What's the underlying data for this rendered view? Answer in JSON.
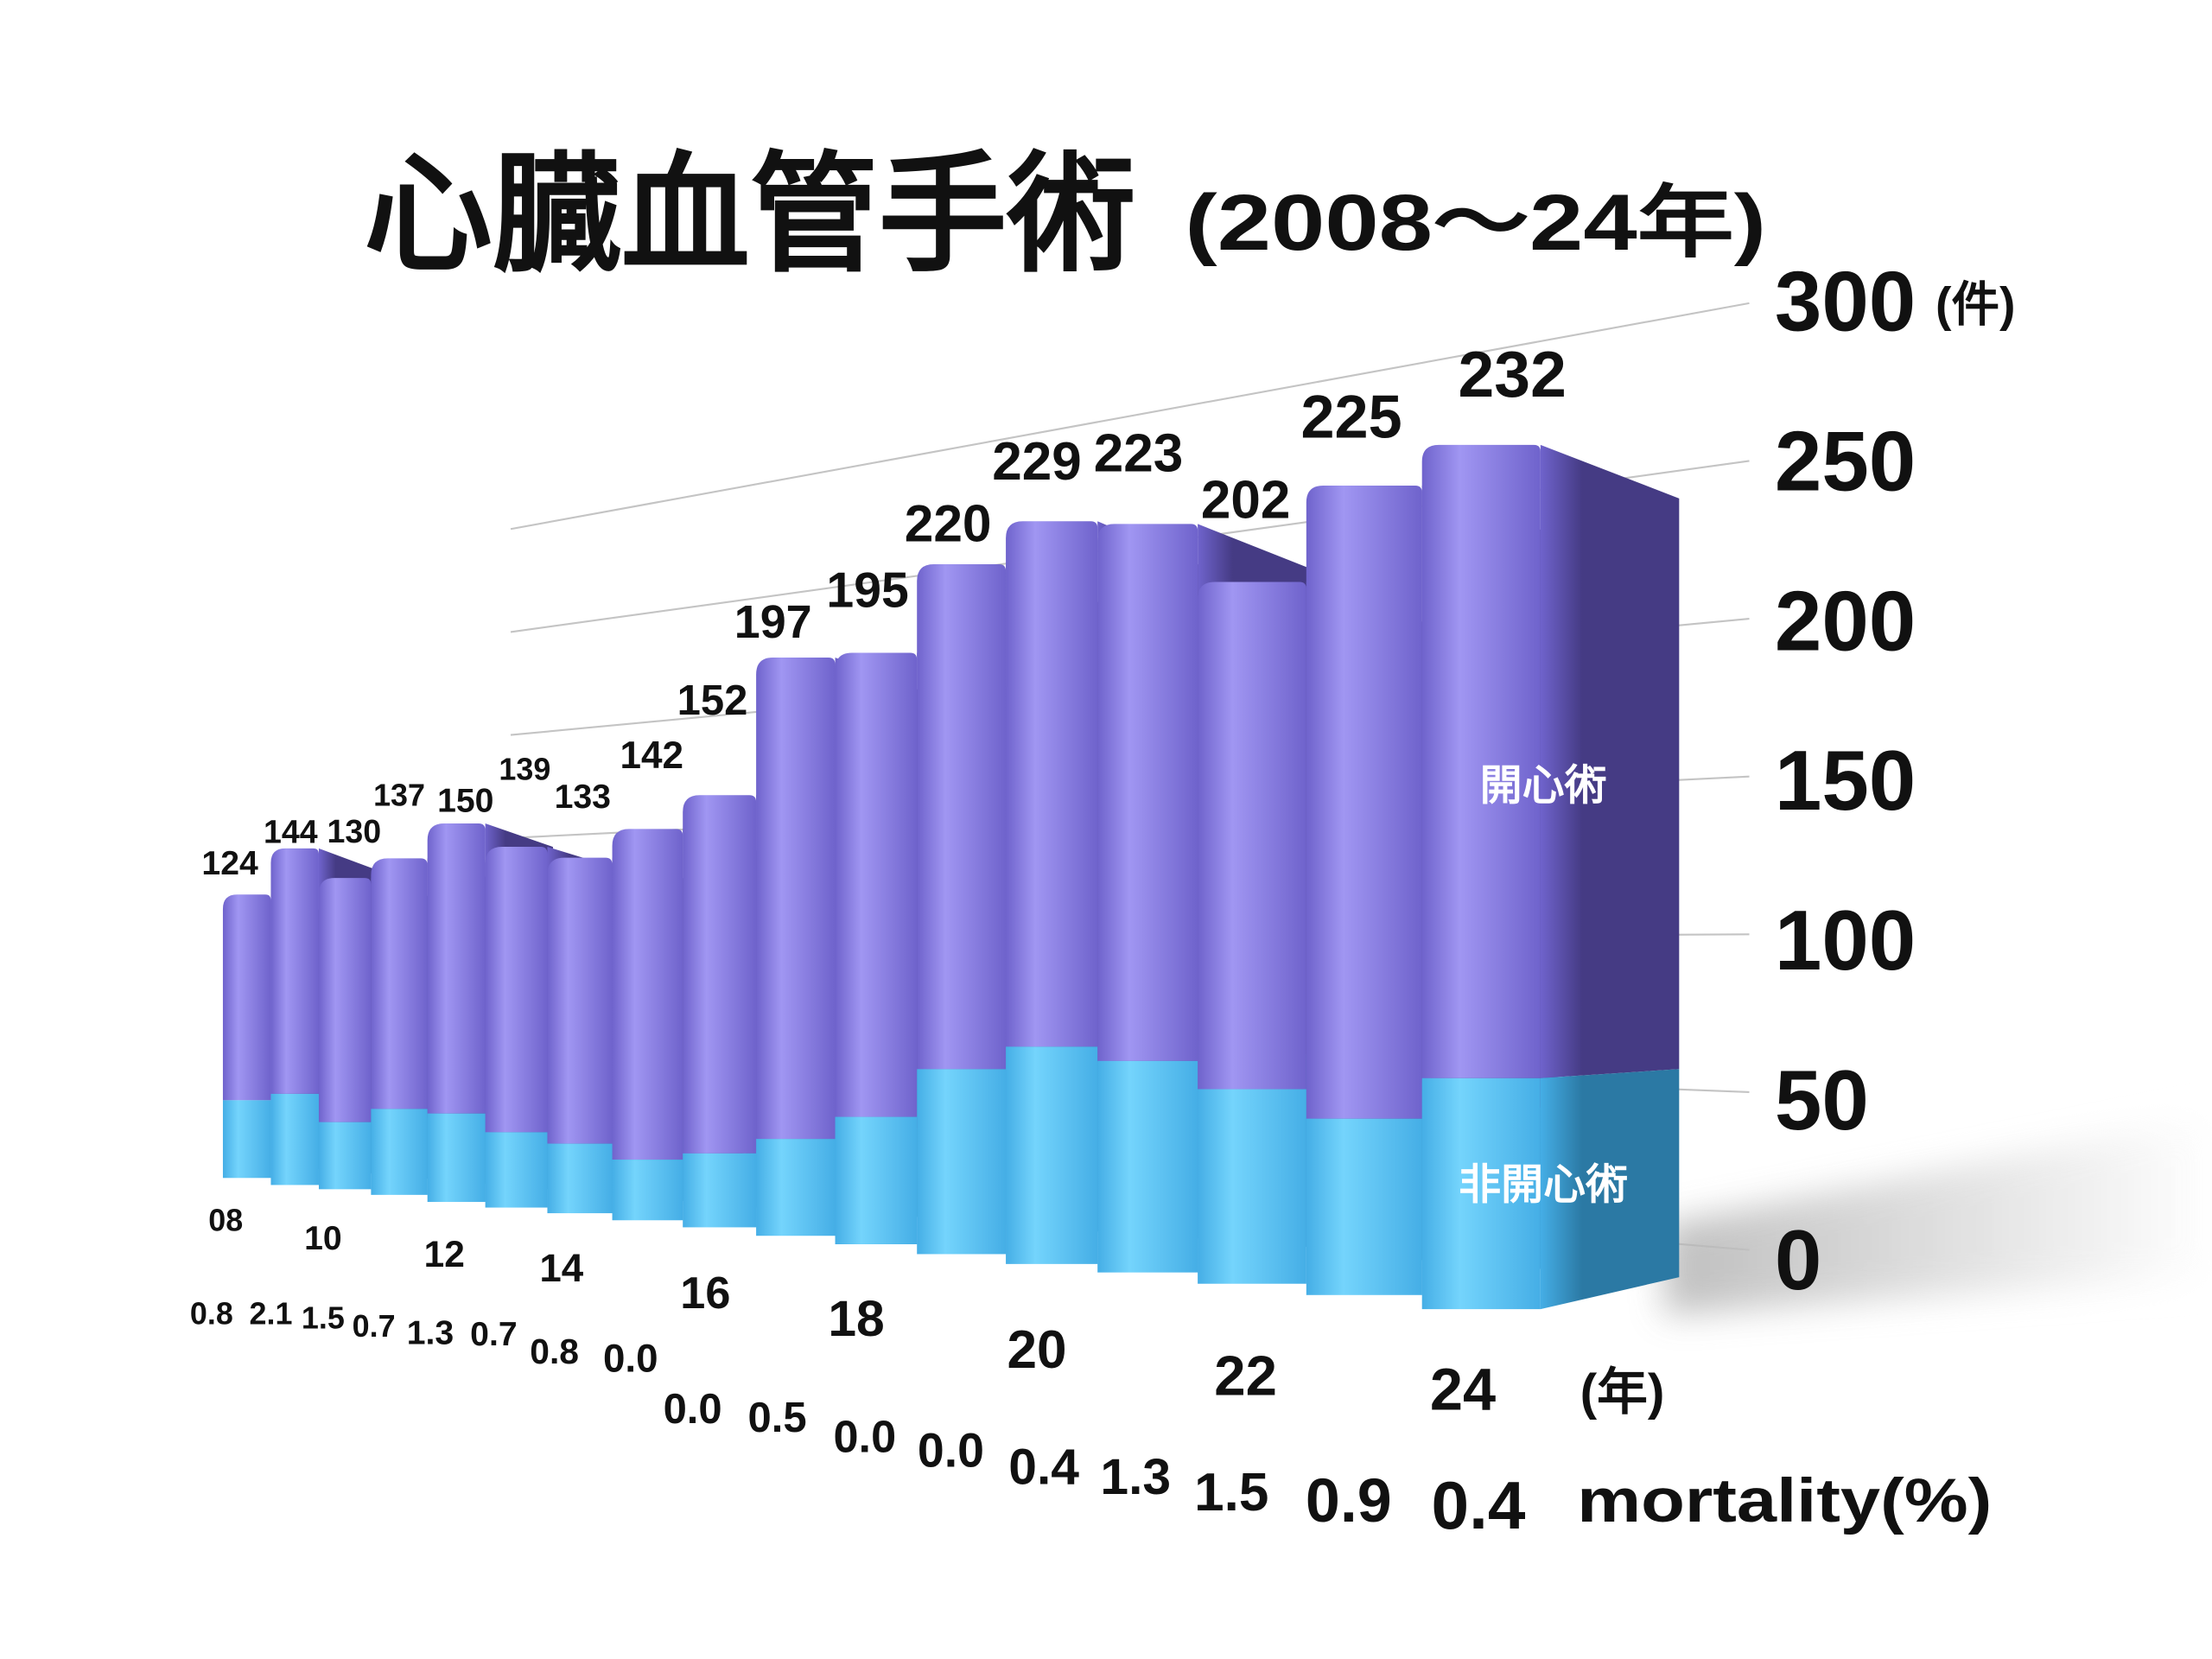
{
  "chart_data": {
    "type": "bar",
    "stacked": true,
    "title": "心臓血管手術",
    "subtitle": "(2008～24年)",
    "x": [
      2008,
      2009,
      2010,
      2011,
      2012,
      2013,
      2014,
      2015,
      2016,
      2017,
      2018,
      2019,
      2020,
      2021,
      2022,
      2023,
      2024
    ],
    "x_tick_labels": [
      "08",
      "10",
      "12",
      "14",
      "16",
      "18",
      "20",
      "22",
      "24"
    ],
    "xlabel": "(年)",
    "ylabel": "(件)",
    "y_ticks": [
      0,
      50,
      100,
      150,
      200,
      250,
      300
    ],
    "ylim": [
      0,
      300
    ],
    "grid": true,
    "series": [
      {
        "name": "非開心術",
        "values": [
          34,
          39,
          28,
          35,
          35,
          29,
          26,
          22,
          26,
          33,
          42,
          59,
          67,
          63,
          56,
          49,
          62
        ]
      },
      {
        "name": "開心術",
        "values": [
          90,
          105,
          102,
          102,
          115,
          110,
          107,
          120,
          126,
          164,
          153,
          161,
          162,
          160,
          146,
          176,
          170
        ]
      }
    ],
    "totals": [
      124,
      144,
      130,
      137,
      150,
      139,
      133,
      142,
      152,
      197,
      195,
      220,
      229,
      223,
      202,
      225,
      232
    ],
    "mortality_label": "mortality(%)",
    "mortality": [
      "0.8",
      "2.1",
      "1.5",
      "0.7",
      "1.3",
      "0.7",
      "0.8",
      "0.0",
      "0.0",
      "0.5",
      "0.0",
      "0.0",
      "0.4",
      "1.3",
      "1.5",
      "0.9",
      "0.4"
    ],
    "colors": {
      "open_heart": "#6f63cc",
      "open_heart_highlight": "#a096f2",
      "open_heart_side": "#453b84",
      "non_open_heart": "#45aee6",
      "non_open_heart_highlight": "#74d4fc",
      "non_open_heart_side": "#2b79a4",
      "gridline": "#c4c4c4",
      "shadow": "#b4b4b4"
    }
  }
}
